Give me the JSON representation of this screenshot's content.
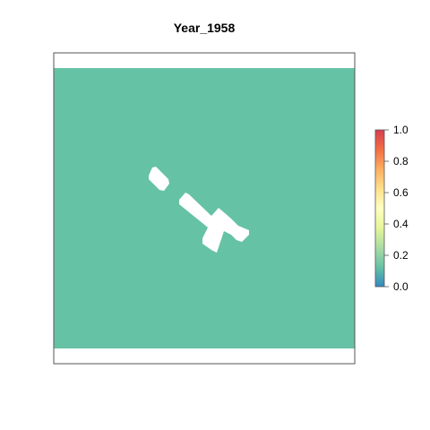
{
  "chart_data": {
    "type": "heatmap",
    "title": "Year_1958",
    "xlabel": "",
    "ylabel": "",
    "value_range": [
      0,
      1
    ],
    "dominant_value": 0.1,
    "dominant_color": "#66c2a5",
    "background_color": "#ffffff",
    "frame_color": "#555555",
    "no_data_regions": "white (NA) cells",
    "colorbar": {
      "ticks": [
        "0.0",
        "0.2",
        "0.4",
        "0.6",
        "0.8",
        "1.0"
      ],
      "tick_values": [
        0,
        0.2,
        0.4,
        0.6,
        0.8,
        1.0
      ],
      "colors": [
        "#3288bd",
        "#66c2a5",
        "#abdda4",
        "#e6f598",
        "#ffffbf",
        "#fee08b",
        "#fdae61",
        "#f46d43",
        "#d53e4f"
      ]
    },
    "grid": false,
    "legend": "right"
  }
}
